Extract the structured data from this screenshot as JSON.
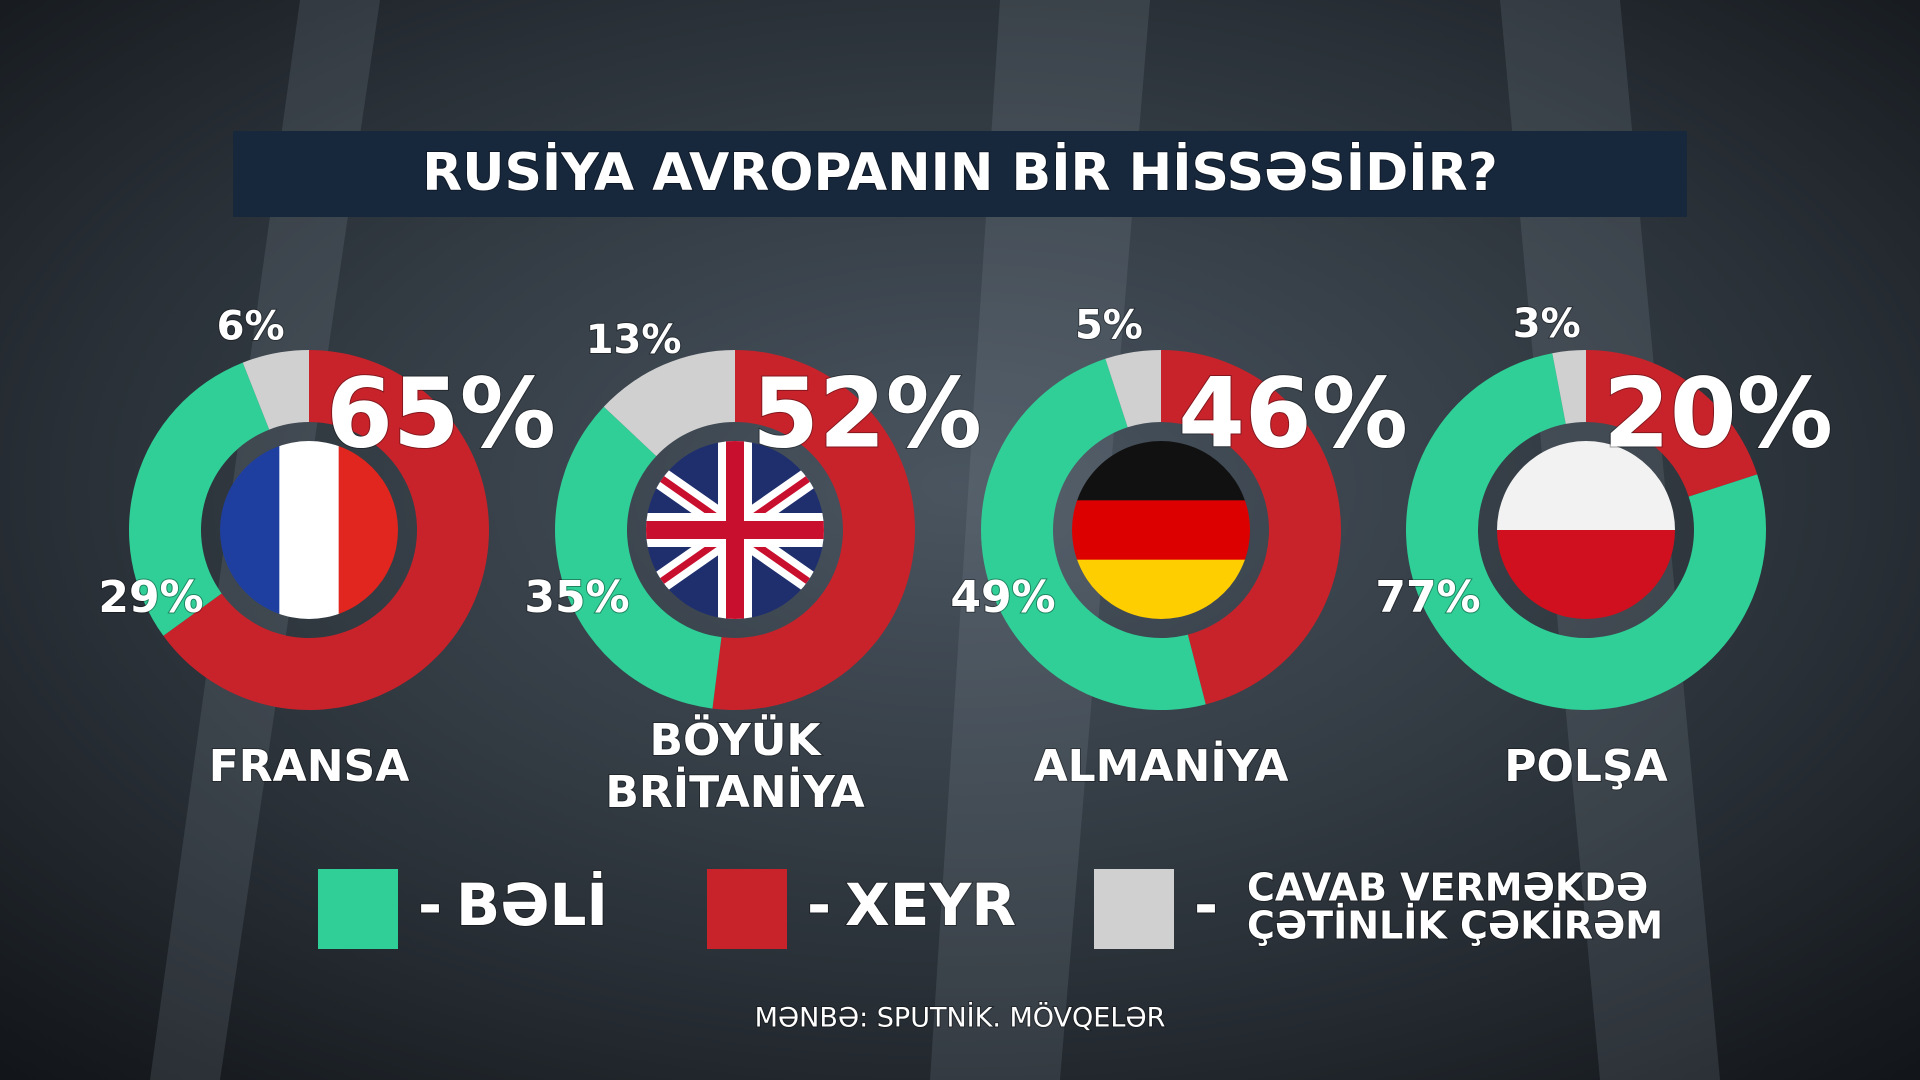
{
  "title": "RUSİYA AVROPANIN BİR HİSSƏSİDİR?",
  "legend": {
    "separator": "-",
    "items": [
      {
        "label": [
          "BƏLİ"
        ],
        "color": "#2fcf97"
      },
      {
        "label": [
          "XEYR"
        ],
        "color": "#c8232b"
      },
      {
        "label": [
          "CAVAB VERMƏKDƏ",
          "ÇƏTİNLİK ÇƏKİRƏM"
        ],
        "color": "#d0d0d0"
      }
    ]
  },
  "source": "MƏNBƏ: SPUTNİK. MÖVQELƏR",
  "chart_data": [
    {
      "type": "donut",
      "title": [
        "FRANSA"
      ],
      "values": [
        29,
        65,
        6
      ],
      "value_labels": [
        "29%",
        "65%",
        "6%"
      ]
    },
    {
      "type": "donut",
      "title": [
        "BÖYÜK",
        "BRİTANİYA"
      ],
      "values": [
        35,
        52,
        13
      ],
      "value_labels": [
        "35%",
        "52%",
        "13%"
      ]
    },
    {
      "type": "donut",
      "title": [
        "ALMANİYA"
      ],
      "values": [
        49,
        46,
        5
      ],
      "value_labels": [
        "49%",
        "46%",
        "5%"
      ]
    },
    {
      "type": "donut",
      "title": [
        "POLŞA"
      ],
      "values": [
        77,
        20,
        3
      ],
      "value_labels": [
        "77%",
        "20%",
        "3%"
      ]
    }
  ]
}
